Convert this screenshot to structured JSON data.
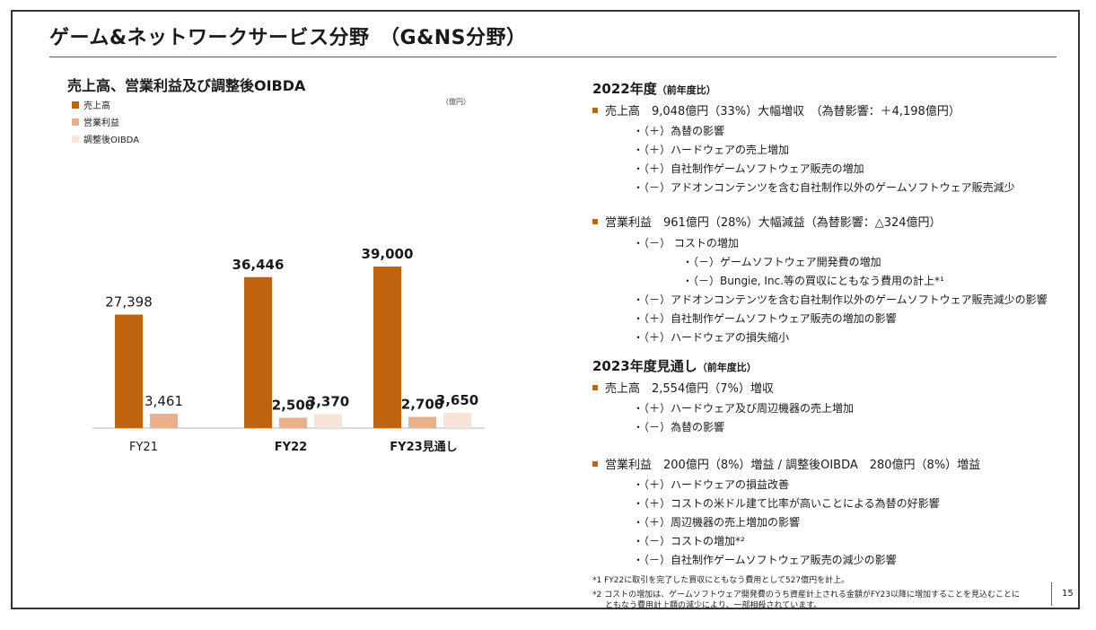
{
  "slide": {
    "title": "ゲーム&ネットワークサービス分野　（G&NS分野）",
    "page_number": "15"
  },
  "chart_data": {
    "type": "bar",
    "title": "売上高、営業利益及び調整後OIBDA",
    "unit": "（億円）",
    "categories": [
      "FY21",
      "FY22",
      "FY23見通し"
    ],
    "category_bold": [
      false,
      true,
      true
    ],
    "series": [
      {
        "name": "売上高",
        "color": "#c0630c",
        "values": [
          27398,
          36446,
          39000
        ],
        "labels": [
          "27,398",
          "36,446",
          "39,000"
        ]
      },
      {
        "name": "営業利益",
        "color": "#e8b08c",
        "values": [
          3461,
          2500,
          2700
        ],
        "labels": [
          "3,461",
          "2,500",
          "2,700"
        ]
      },
      {
        "name": "調整後OIBDA",
        "color": "#f7e3d7",
        "values": [
          null,
          3370,
          3650
        ],
        "labels": [
          "",
          "3,370",
          "3,650"
        ]
      }
    ],
    "ylim": [
      0,
      39000
    ]
  },
  "right": {
    "fy22": {
      "heading": "2022年度",
      "heading_sub": "（前年度比）",
      "sales": {
        "text": "売上高　9,048億円（33%）大幅増収　（為替影響：＋4,198億円）",
        "items": [
          "・（＋）為替の影響",
          "・（＋）ハードウェアの売上増加",
          "・（＋）自社制作ゲームソフトウェア販売の増加",
          "・（－）アドオンコンテンツを含む自社制作以外のゲームソフトウェア販売減少"
        ]
      },
      "profit": {
        "text": "営業利益　961億円（28%）大幅減益（為替影響：△324億円）",
        "items": [
          "・（－） コストの増加",
          "・（－）ゲームソフトウェア開発費の増加",
          "・（－）Bungie, Inc.等の買収にともなう費用の計上*¹",
          "・（－）アドオンコンテンツを含む自社制作以外のゲームソフトウェア販売減少の影響",
          "・（＋）自社制作ゲームソフトウェア販売の増加の影響",
          "・（＋）ハードウェアの損失縮小"
        ]
      }
    },
    "fy23": {
      "heading": "2023年度見通し",
      "heading_sub": "（前年度比）",
      "sales": {
        "text": "売上高　2,554億円（7%）増収",
        "items": [
          "・（＋）ハードウェア及び周辺機器の売上増加",
          "・（－）為替の影響"
        ]
      },
      "profit": {
        "text": "営業利益　200億円（8%）増益 / 調整後OIBDA　280億円（8%）増益",
        "items": [
          "・（＋）ハードウェアの損益改善",
          "・（＋）コストの米ドル建て比率が高いことによる為替の好影響",
          "・（＋）周辺機器の売上増加の影響",
          "・（－）コストの増加*²",
          "・（－）自社制作ゲームソフトウェア販売の減少の影響"
        ]
      }
    },
    "footnotes": [
      "*1 FY22に取引を完了した買収にともなう費用として527億円を計上。",
      "*2 コストの増加は、ゲームソフトウェア開発費のうち資産計上される金額がFY23以降に増加することを見込むことに",
      "ともなう費用計上額の減少により、一部相殺されています。"
    ]
  }
}
